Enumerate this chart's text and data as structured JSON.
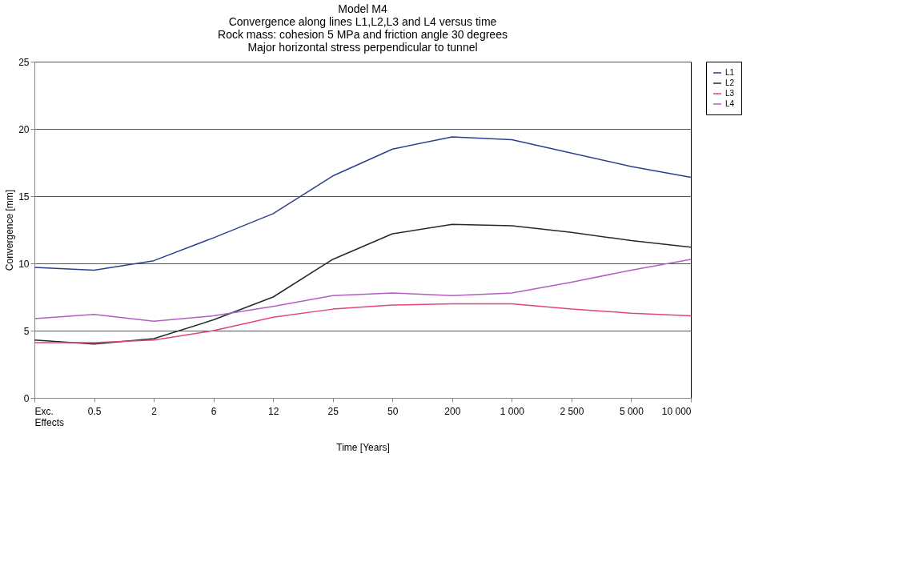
{
  "chart_data": {
    "type": "line",
    "title": [
      "Model M4",
      "Convergence along lines L1,L2,L3 and L4 versus  time",
      "Rock mass: cohesion 5 MPa and friction angle 30 degrees",
      "Major horizontal stress perpendicular to tunnel"
    ],
    "xlabel": "Time [Years]",
    "ylabel": "Convergence [mm]",
    "categories": [
      "Exc.\nEffects",
      "0.5",
      "2",
      "6",
      "12",
      "25",
      "50",
      "200",
      "1 000",
      "2 500",
      "5 000",
      "10 000"
    ],
    "series": [
      {
        "name": "L1",
        "color": "#2e3f8f",
        "values": [
          9.7,
          9.5,
          10.2,
          11.9,
          13.7,
          16.5,
          18.5,
          19.4,
          19.2,
          18.2,
          17.2,
          16.4
        ]
      },
      {
        "name": "L2",
        "color": "#1f2a2a",
        "values": [
          4.3,
          4.0,
          4.4,
          5.8,
          7.5,
          10.3,
          12.2,
          12.9,
          12.8,
          12.3,
          11.7,
          11.2
        ]
      },
      {
        "name": "L3",
        "color": "#e0457b",
        "values": [
          4.1,
          4.1,
          4.3,
          5.0,
          6.0,
          6.6,
          6.9,
          7.0,
          7.0,
          6.6,
          6.3,
          6.1
        ]
      },
      {
        "name": "L4",
        "color": "#b060c0",
        "values": [
          5.9,
          6.2,
          5.7,
          6.1,
          6.8,
          7.6,
          7.8,
          7.6,
          7.8,
          8.6,
          9.5,
          10.3
        ]
      }
    ],
    "ylim": [
      0,
      25
    ],
    "yticks": [
      0,
      5,
      10,
      15,
      20,
      25
    ],
    "grid": "y",
    "legend": "right",
    "marker": "none",
    "line_style": "solid"
  }
}
